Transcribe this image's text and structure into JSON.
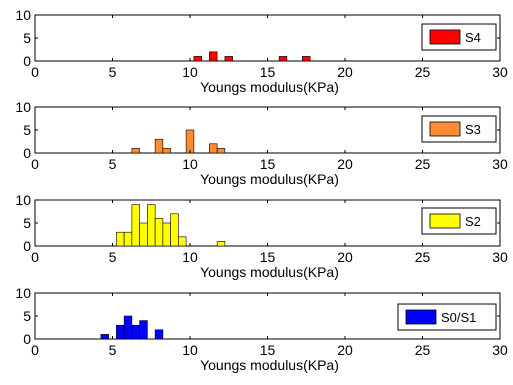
{
  "chart_data": [
    {
      "type": "bar",
      "xlabel": "Youngs modulus(KPa)",
      "ylabel": "",
      "xlim": [
        0,
        30
      ],
      "ylim": [
        0,
        10
      ],
      "xticks": [
        "0",
        "5",
        "10",
        "15",
        "20",
        "25",
        "30"
      ],
      "yticks": [
        "0",
        "5",
        "10"
      ],
      "bin_width": 0.5,
      "grid": false,
      "legend_position": "right",
      "series": [
        {
          "name": "S4",
          "color": "#ff0000",
          "x": [
            10.5,
            11.5,
            12.5,
            16,
            17.5
          ],
          "values": [
            1,
            2,
            1,
            1,
            1
          ]
        }
      ]
    },
    {
      "type": "bar",
      "xlabel": "Youngs modulus(KPa)",
      "ylabel": "",
      "xlim": [
        0,
        30
      ],
      "ylim": [
        0,
        10
      ],
      "xticks": [
        "0",
        "5",
        "10",
        "15",
        "20",
        "25",
        "30"
      ],
      "yticks": [
        "0",
        "5",
        "10"
      ],
      "bin_width": 0.5,
      "grid": false,
      "legend_position": "right",
      "series": [
        {
          "name": "S3",
          "color": "#ff8c33",
          "x": [
            6.5,
            8,
            8.5,
            10,
            11.5,
            12
          ],
          "values": [
            1,
            3,
            1,
            5,
            2,
            1
          ]
        }
      ]
    },
    {
      "type": "bar",
      "xlabel": "Youngs modulus(KPa)",
      "ylabel": "",
      "xlim": [
        0,
        30
      ],
      "ylim": [
        0,
        10
      ],
      "xticks": [
        "0",
        "5",
        "10",
        "15",
        "20",
        "25",
        "30"
      ],
      "yticks": [
        "0",
        "5",
        "10"
      ],
      "bin_width": 0.5,
      "grid": false,
      "legend_position": "right",
      "series": [
        {
          "name": "S2",
          "color": "#ffff00",
          "x": [
            5.5,
            6,
            6.5,
            7,
            7.5,
            8,
            8.5,
            9,
            9.5,
            12
          ],
          "values": [
            3,
            3,
            9,
            5,
            9,
            6,
            5,
            7,
            2,
            1
          ]
        }
      ]
    },
    {
      "type": "bar",
      "xlabel": "Youngs modulus(KPa)",
      "ylabel": "",
      "xlim": [
        0,
        30
      ],
      "ylim": [
        0,
        10
      ],
      "xticks": [
        "0",
        "5",
        "10",
        "15",
        "20",
        "25",
        "30"
      ],
      "yticks": [
        "0",
        "5",
        "10"
      ],
      "bin_width": 0.5,
      "grid": false,
      "legend_position": "right",
      "series": [
        {
          "name": "S0/S1",
          "color": "#0000ff",
          "x": [
            4.5,
            5.5,
            6,
            6.5,
            7,
            8
          ],
          "values": [
            1,
            3,
            5,
            3,
            4,
            2
          ]
        }
      ]
    }
  ]
}
